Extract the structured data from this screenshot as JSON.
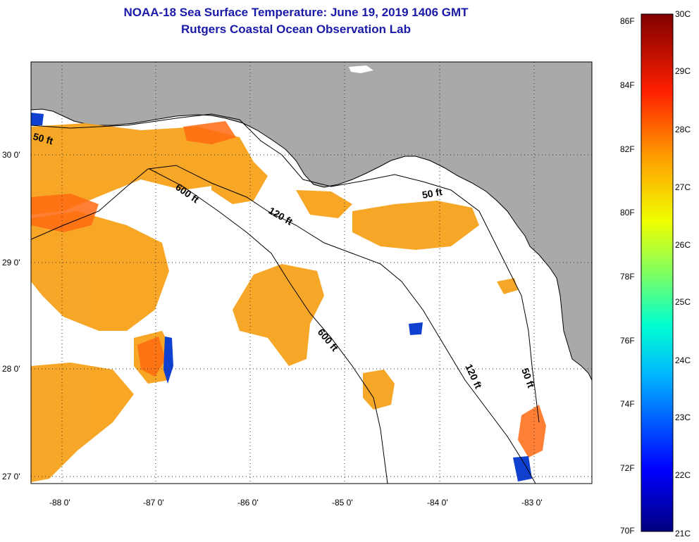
{
  "title": {
    "line1": "NOAA-18 Sea Surface Temperature:  June 19, 2019 1406 GMT",
    "line2": "Rutgers Coastal Ocean Observation Lab"
  },
  "axes": {
    "lat_ticks": [
      "30 0'",
      "29 0'",
      "28 0'",
      "27 0'"
    ],
    "lon_ticks": [
      "-88 0'",
      "-87 0'",
      "-86 0'",
      "-85 0'",
      "-84 0'",
      "-83 0'"
    ]
  },
  "contours": [
    "50 ft",
    "600 ft",
    "120 ft",
    "50 ft",
    "600 ft",
    "120 ft",
    "50 ft"
  ],
  "colorbar": {
    "fahrenheit": [
      "86F",
      "84F",
      "82F",
      "80F",
      "78F",
      "76F",
      "74F",
      "72F",
      "70F"
    ],
    "celsius": [
      "30C",
      "29C",
      "28C",
      "27C",
      "26C",
      "25C",
      "24C",
      "23C",
      "22C",
      "21C"
    ]
  },
  "colors": {
    "land": "#a9a9a9",
    "ocean": "#ffffff",
    "title": "#1a1aa8",
    "warm_sst": "#f7a21b"
  }
}
